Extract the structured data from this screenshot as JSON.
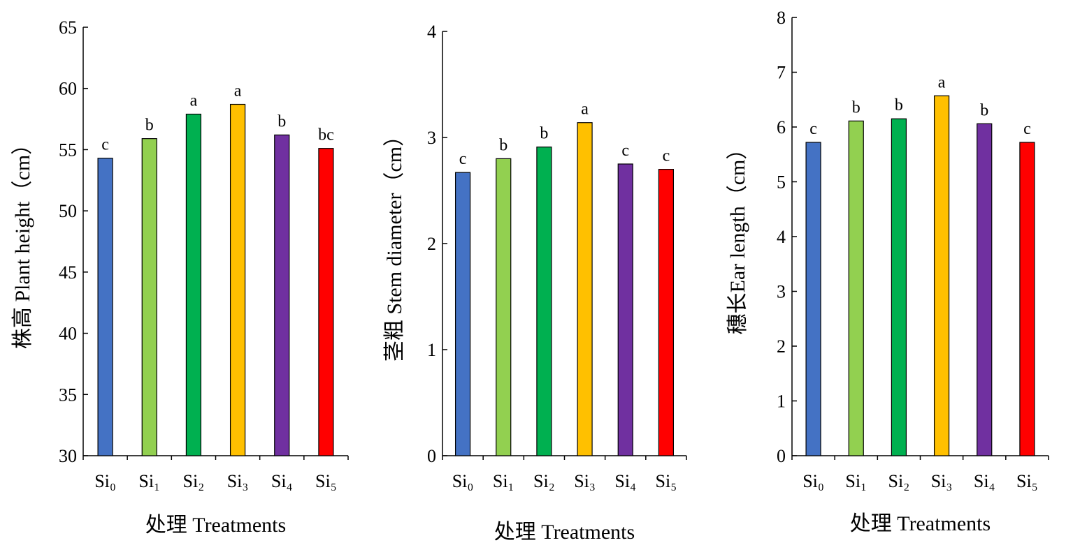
{
  "chart_data": [
    {
      "type": "bar",
      "categories": [
        "Si₀",
        "Si₁",
        "Si₂",
        "Si₃",
        "Si₄",
        "Si₅"
      ],
      "values": [
        54.3,
        55.9,
        57.9,
        58.7,
        56.2,
        55.1
      ],
      "significance_letters": [
        "c",
        "b",
        "a",
        "a",
        "b",
        "bc"
      ],
      "colors": [
        "#4472C4",
        "#92D050",
        "#00B050",
        "#FFC000",
        "#7030A0",
        "#FF0000"
      ],
      "ylabel": "株高 Plant height（cm）",
      "xlabel": "处理 Treatments",
      "ylim": [
        30,
        65
      ],
      "yticks": [
        "30",
        "35",
        "40",
        "45",
        "50",
        "55",
        "60",
        "65"
      ],
      "grid": false
    },
    {
      "type": "bar",
      "categories": [
        "Si₀",
        "Si₁",
        "Si₂",
        "Si₃",
        "Si₄",
        "Si₅"
      ],
      "values": [
        2.67,
        2.8,
        2.91,
        3.14,
        2.75,
        2.7
      ],
      "significance_letters": [
        "c",
        "b",
        "b",
        "a",
        "c",
        "c"
      ],
      "colors": [
        "#4472C4",
        "#92D050",
        "#00B050",
        "#FFC000",
        "#7030A0",
        "#FF0000"
      ],
      "ylabel": "茎粗 Stem diameter（cm）",
      "xlabel": "处理 Treatments",
      "ylim": [
        0,
        4
      ],
      "yticks": [
        "0",
        "1",
        "2",
        "3",
        "4"
      ],
      "grid": false
    },
    {
      "type": "bar",
      "categories": [
        "Si₀",
        "Si₁",
        "Si₂",
        "Si₃",
        "Si₄",
        "Si₅"
      ],
      "values": [
        5.72,
        6.11,
        6.15,
        6.57,
        6.06,
        5.72
      ],
      "significance_letters": [
        "c",
        "b",
        "b",
        "a",
        "b",
        "c"
      ],
      "colors": [
        "#4472C4",
        "#92D050",
        "#00B050",
        "#FFC000",
        "#7030A0",
        "#FF0000"
      ],
      "ylabel": "穗长Ear length（cm）",
      "xlabel": "处理 Treatments",
      "ylim": [
        0,
        8
      ],
      "yticks": [
        "0",
        "1",
        "2",
        "3",
        "4",
        "5",
        "6",
        "7",
        "8"
      ],
      "grid": false
    }
  ]
}
